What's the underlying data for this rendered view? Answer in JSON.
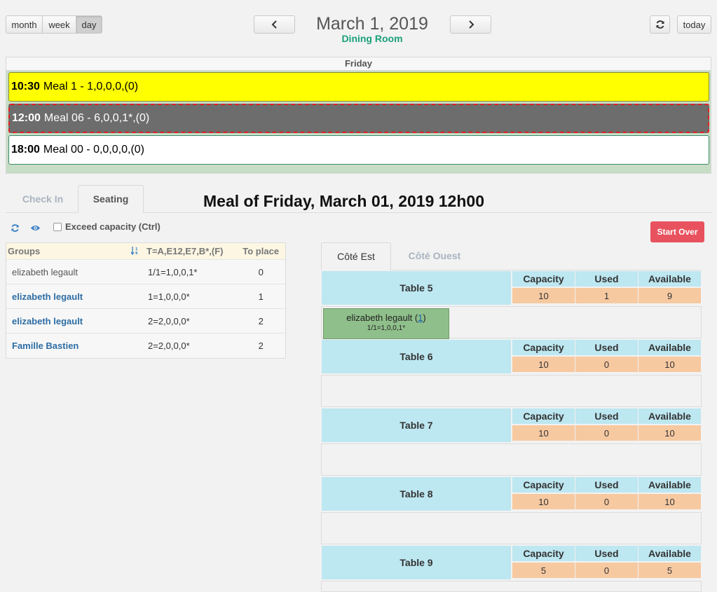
{
  "toolbar": {
    "views": [
      {
        "label": "month"
      },
      {
        "label": "week"
      },
      {
        "label": "day"
      }
    ],
    "prev_label": "‹",
    "next_label": "›",
    "title": "March 1, 2019",
    "subtitle": "Dining Room",
    "refresh_icon": "refresh-icon",
    "today_label": "today"
  },
  "calendar": {
    "day_header": "Friday",
    "events": [
      {
        "time": "10:30",
        "label": "Meal 1 - 1,0,0,0,(0)",
        "color": "#ffff00"
      },
      {
        "time": "12:00",
        "label": "Meal 06 - 6,0,0,1*,(0)",
        "color": "#6d6d6d"
      },
      {
        "time": "18:00",
        "label": "Meal 00 - 0,0,0,0,(0)",
        "color": "#ffffff"
      }
    ]
  },
  "tabs": {
    "checkin": "Check In",
    "seating": "Seating"
  },
  "meal_title": "Meal of Friday, March 01, 2019 12h00",
  "controls": {
    "exceed_label": "Exceed capacity (Ctrl)",
    "start_over": "Start Over"
  },
  "groups": {
    "headers": {
      "groups": "Groups",
      "code": "T=A,E12,E7,B*,(F)",
      "to_place": "To place"
    },
    "rows": [
      {
        "name": "elizabeth legault",
        "code": "1/1=1,0,0,1*",
        "to_place": "0"
      },
      {
        "name": "elizabeth legault",
        "code": "1=1,0,0,0*",
        "to_place": "1"
      },
      {
        "name": "elizabeth legault",
        "code": "2=2,0,0,0*",
        "to_place": "2"
      },
      {
        "name": "Famille Bastien",
        "code": "2=2,0,0,0*",
        "to_place": "2"
      }
    ]
  },
  "room_tabs": {
    "east": "Côté Est",
    "west": "Côté Ouest"
  },
  "table_headers": {
    "capacity": "Capacity",
    "used": "Used",
    "available": "Available"
  },
  "tables": [
    {
      "name": "Table 5",
      "capacity": "10",
      "used": "1",
      "available": "9",
      "seated": {
        "name": "elizabeth legault",
        "count": "1",
        "code": "1/1=1,0,0,1*"
      }
    },
    {
      "name": "Table 6",
      "capacity": "10",
      "used": "0",
      "available": "10"
    },
    {
      "name": "Table 7",
      "capacity": "10",
      "used": "0",
      "available": "10"
    },
    {
      "name": "Table 8",
      "capacity": "10",
      "used": "0",
      "available": "10"
    },
    {
      "name": "Table 9",
      "capacity": "5",
      "used": "0",
      "available": "5"
    }
  ]
}
